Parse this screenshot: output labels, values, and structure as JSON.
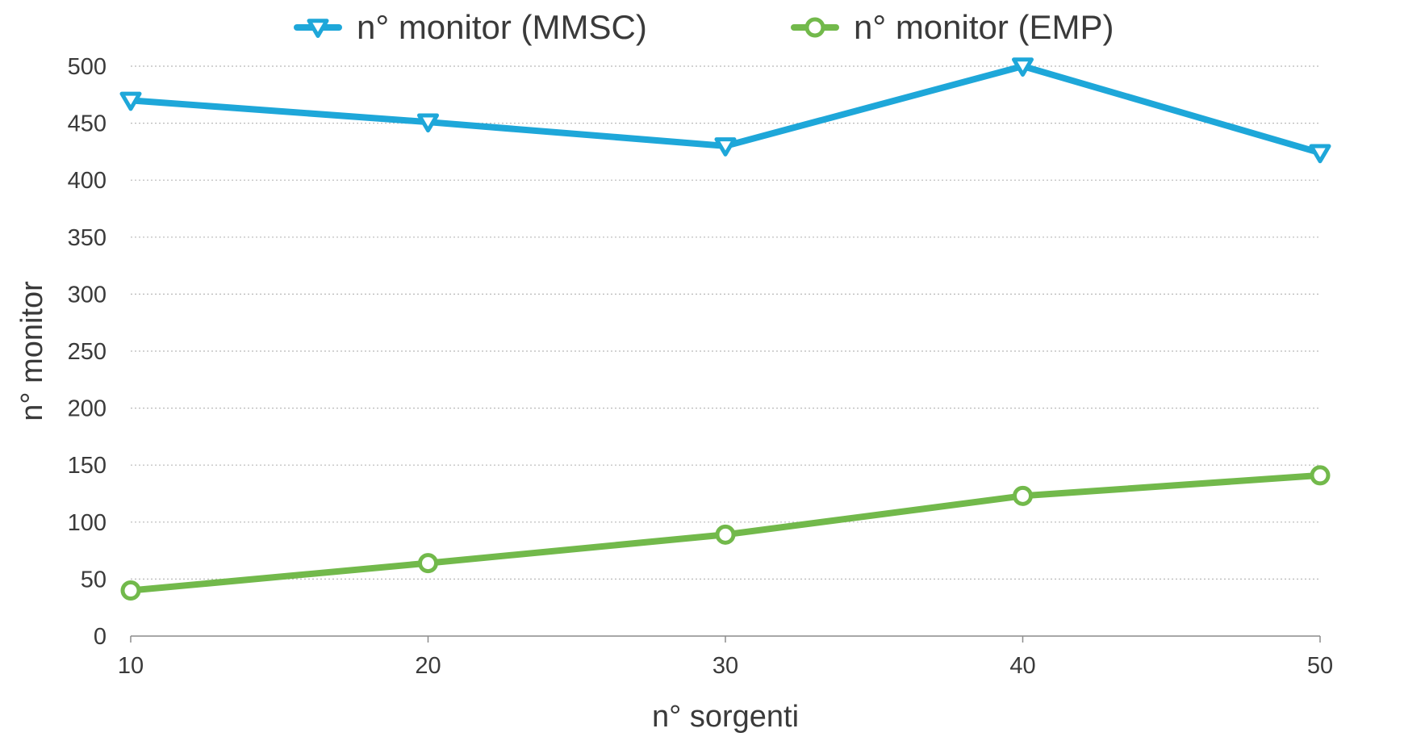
{
  "chart_data": {
    "type": "line",
    "x": [
      10,
      20,
      30,
      40,
      50
    ],
    "x_ticks": [
      "10",
      "20",
      "30",
      "40",
      "50"
    ],
    "y_ticks": [
      "0",
      "50",
      "100",
      "150",
      "200",
      "250",
      "300",
      "350",
      "400",
      "450",
      "500"
    ],
    "xlabel": "n° sorgenti",
    "ylabel": "n° monitor",
    "xlim": [
      10,
      50
    ],
    "ylim": [
      0,
      500
    ],
    "grid": true,
    "legend_position": "top",
    "series": [
      {
        "name": "n° monitor (MMSC)",
        "values": [
          470,
          451,
          430,
          500,
          424
        ],
        "color": "#1ea7d9",
        "marker": "triangle-down-icon"
      },
      {
        "name": "n° monitor (EMP)",
        "values": [
          40,
          64,
          89,
          123,
          141
        ],
        "color": "#72b94b",
        "marker": "circle-icon"
      }
    ]
  }
}
